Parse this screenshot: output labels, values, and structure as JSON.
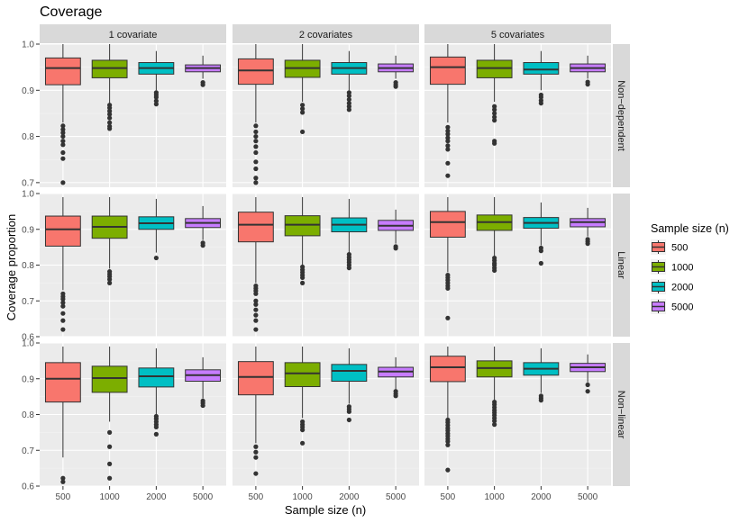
{
  "chart_data": {
    "type": "boxplot",
    "title": "Coverage",
    "xlabel": "Sample size (n)",
    "ylabel": "Coverage proportion",
    "x_categories": [
      "500",
      "1000",
      "2000",
      "5000"
    ],
    "col_facets": [
      "1 covariate",
      "2 covariates",
      "5 covariates"
    ],
    "row_facets": [
      "Non−dependent",
      "Linear",
      "Non−linear"
    ],
    "legend": {
      "title": "Sample size (n)",
      "placement": "right",
      "items": [
        {
          "label": "500",
          "color": "#F8766D"
        },
        {
          "label": "1000",
          "color": "#7CAE00"
        },
        {
          "label": "2000",
          "color": "#00BFC4"
        },
        {
          "label": "5000",
          "color": "#C77CFF"
        }
      ]
    },
    "rows": [
      {
        "ylim": [
          0.69,
          1.0
        ],
        "yticks": [
          0.7,
          0.8,
          0.9,
          1.0
        ],
        "panels": [
          [
            {
              "lower": 0.83,
              "q1": 0.912,
              "median": 0.948,
              "q3": 0.97,
              "upper": 1.0,
              "outliers": [
                0.823,
                0.815,
                0.808,
                0.8,
                0.79,
                0.782,
                0.765,
                0.752,
                0.7
              ]
            },
            {
              "lower": 0.87,
              "q1": 0.927,
              "median": 0.948,
              "q3": 0.965,
              "upper": 1.0,
              "outliers": [
                0.868,
                0.862,
                0.855,
                0.848,
                0.84,
                0.83,
                0.822,
                0.817
              ]
            },
            {
              "lower": 0.9,
              "q1": 0.935,
              "median": 0.948,
              "q3": 0.96,
              "upper": 0.985,
              "outliers": [
                0.895,
                0.89,
                0.885,
                0.877,
                0.87
              ]
            },
            {
              "lower": 0.925,
              "q1": 0.94,
              "median": 0.948,
              "q3": 0.955,
              "upper": 0.975,
              "outliers": [
                0.917,
                0.912
              ]
            }
          ],
          [
            {
              "lower": 0.83,
              "q1": 0.913,
              "median": 0.943,
              "q3": 0.968,
              "upper": 1.0,
              "outliers": [
                0.823,
                0.81,
                0.8,
                0.79,
                0.778,
                0.765,
                0.745,
                0.73,
                0.71,
                0.7
              ]
            },
            {
              "lower": 0.875,
              "q1": 0.928,
              "median": 0.948,
              "q3": 0.965,
              "upper": 1.0,
              "outliers": [
                0.868,
                0.86,
                0.852,
                0.81
              ]
            },
            {
              "lower": 0.9,
              "q1": 0.935,
              "median": 0.948,
              "q3": 0.96,
              "upper": 0.985,
              "outliers": [
                0.895,
                0.888,
                0.88,
                0.872,
                0.865,
                0.858
              ]
            },
            {
              "lower": 0.925,
              "q1": 0.94,
              "median": 0.948,
              "q3": 0.957,
              "upper": 0.975,
              "outliers": [
                0.917,
                0.912,
                0.908
              ]
            }
          ],
          [
            {
              "lower": 0.83,
              "q1": 0.913,
              "median": 0.95,
              "q3": 0.972,
              "upper": 1.0,
              "outliers": [
                0.82,
                0.812,
                0.805,
                0.797,
                0.79,
                0.78,
                0.772,
                0.742,
                0.715
              ]
            },
            {
              "lower": 0.875,
              "q1": 0.927,
              "median": 0.948,
              "q3": 0.965,
              "upper": 1.0,
              "outliers": [
                0.865,
                0.858,
                0.85,
                0.842,
                0.835,
                0.79,
                0.785
              ]
            },
            {
              "lower": 0.9,
              "q1": 0.935,
              "median": 0.945,
              "q3": 0.96,
              "upper": 0.985,
              "outliers": [
                0.89,
                0.885,
                0.878,
                0.872
              ]
            },
            {
              "lower": 0.925,
              "q1": 0.94,
              "median": 0.948,
              "q3": 0.957,
              "upper": 0.975,
              "outliers": [
                0.918,
                0.913
              ]
            }
          ]
        ]
      },
      {
        "ylim": [
          0.6,
          1.0
        ],
        "yticks": [
          0.6,
          0.7,
          0.8,
          0.9,
          1.0
        ],
        "panels": [
          [
            {
              "lower": 0.73,
              "q1": 0.853,
              "median": 0.9,
              "q3": 0.937,
              "upper": 0.99,
              "outliers": [
                0.72,
                0.712,
                0.705,
                0.695,
                0.685,
                0.665,
                0.645,
                0.62
              ]
            },
            {
              "lower": 0.79,
              "q1": 0.875,
              "median": 0.907,
              "q3": 0.937,
              "upper": 0.99,
              "outliers": [
                0.782,
                0.775,
                0.768,
                0.76,
                0.75
              ]
            },
            {
              "lower": 0.835,
              "q1": 0.9,
              "median": 0.917,
              "q3": 0.935,
              "upper": 0.985,
              "outliers": [
                0.82
              ]
            },
            {
              "lower": 0.87,
              "q1": 0.905,
              "median": 0.918,
              "q3": 0.93,
              "upper": 0.965,
              "outliers": [
                0.862,
                0.855
              ]
            }
          ],
          [
            {
              "lower": 0.75,
              "q1": 0.865,
              "median": 0.913,
              "q3": 0.948,
              "upper": 0.99,
              "outliers": [
                0.742,
                0.735,
                0.728,
                0.72,
                0.7,
                0.69,
                0.675,
                0.66,
                0.645,
                0.62
              ]
            },
            {
              "lower": 0.8,
              "q1": 0.882,
              "median": 0.913,
              "q3": 0.938,
              "upper": 0.99,
              "outliers": [
                0.795,
                0.787,
                0.78,
                0.772,
                0.765,
                0.75
              ]
            },
            {
              "lower": 0.835,
              "q1": 0.893,
              "median": 0.913,
              "q3": 0.932,
              "upper": 0.985,
              "outliers": [
                0.83,
                0.822,
                0.815,
                0.808,
                0.8,
                0.792
              ]
            },
            {
              "lower": 0.86,
              "q1": 0.897,
              "median": 0.91,
              "q3": 0.925,
              "upper": 0.955,
              "outliers": [
                0.852,
                0.847
              ]
            }
          ],
          [
            {
              "lower": 0.78,
              "q1": 0.878,
              "median": 0.92,
              "q3": 0.95,
              "upper": 0.99,
              "outliers": [
                0.772,
                0.765,
                0.758,
                0.75,
                0.742,
                0.735,
                0.652
              ]
            },
            {
              "lower": 0.825,
              "q1": 0.897,
              "median": 0.92,
              "q3": 0.94,
              "upper": 0.99,
              "outliers": [
                0.82,
                0.813,
                0.805,
                0.8,
                0.792,
                0.785
              ]
            },
            {
              "lower": 0.855,
              "q1": 0.903,
              "median": 0.918,
              "q3": 0.933,
              "upper": 0.975,
              "outliers": [
                0.848,
                0.84,
                0.805
              ]
            },
            {
              "lower": 0.88,
              "q1": 0.907,
              "median": 0.92,
              "q3": 0.93,
              "upper": 0.96,
              "outliers": [
                0.872,
                0.866,
                0.86
              ]
            }
          ]
        ]
      },
      {
        "ylim": [
          0.6,
          1.0
        ],
        "yticks": [
          0.6,
          0.7,
          0.8,
          0.9,
          1.0
        ],
        "panels": [
          [
            {
              "lower": 0.68,
              "q1": 0.835,
              "median": 0.9,
              "q3": 0.945,
              "upper": 0.99,
              "outliers": [
                0.622,
                0.612
              ]
            },
            {
              "lower": 0.78,
              "q1": 0.862,
              "median": 0.902,
              "q3": 0.935,
              "upper": 0.99,
              "outliers": [
                0.75,
                0.71,
                0.662,
                0.622
              ]
            },
            {
              "lower": 0.8,
              "q1": 0.877,
              "median": 0.907,
              "q3": 0.93,
              "upper": 0.985,
              "outliers": [
                0.795,
                0.788,
                0.78,
                0.772,
                0.765,
                0.745
              ]
            },
            {
              "lower": 0.845,
              "q1": 0.893,
              "median": 0.91,
              "q3": 0.925,
              "upper": 0.96,
              "outliers": [
                0.838,
                0.832,
                0.825
              ]
            }
          ],
          [
            {
              "lower": 0.72,
              "q1": 0.855,
              "median": 0.905,
              "q3": 0.948,
              "upper": 0.99,
              "outliers": [
                0.71,
                0.695,
                0.68,
                0.635
              ]
            },
            {
              "lower": 0.79,
              "q1": 0.878,
              "median": 0.915,
              "q3": 0.945,
              "upper": 0.99,
              "outliers": [
                0.78,
                0.772,
                0.765,
                0.757,
                0.72
              ]
            },
            {
              "lower": 0.83,
              "q1": 0.893,
              "median": 0.922,
              "q3": 0.94,
              "upper": 0.985,
              "outliers": [
                0.822,
                0.815,
                0.808,
                0.785
              ]
            },
            {
              "lower": 0.87,
              "q1": 0.905,
              "median": 0.92,
              "q3": 0.932,
              "upper": 0.96,
              "outliers": [
                0.865,
                0.858,
                0.852
              ]
            }
          ],
          [
            {
              "lower": 0.79,
              "q1": 0.892,
              "median": 0.932,
              "q3": 0.963,
              "upper": 0.99,
              "outliers": [
                0.785,
                0.778,
                0.77,
                0.762,
                0.755,
                0.747,
                0.74,
                0.732,
                0.725,
                0.715,
                0.645
              ]
            },
            {
              "lower": 0.84,
              "q1": 0.905,
              "median": 0.93,
              "q3": 0.95,
              "upper": 0.99,
              "outliers": [
                0.835,
                0.828,
                0.82,
                0.812,
                0.805,
                0.798,
                0.79,
                0.782,
                0.772
              ]
            },
            {
              "lower": 0.86,
              "q1": 0.91,
              "median": 0.928,
              "q3": 0.945,
              "upper": 0.985,
              "outliers": [
                0.852,
                0.846,
                0.84
              ]
            },
            {
              "lower": 0.89,
              "q1": 0.92,
              "median": 0.932,
              "q3": 0.943,
              "upper": 0.968,
              "outliers": [
                0.883,
                0.865
              ]
            }
          ]
        ]
      }
    ]
  }
}
